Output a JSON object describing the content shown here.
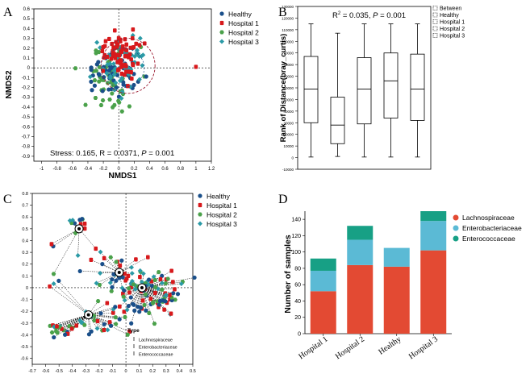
{
  "colors": {
    "healthy": "#1a4f8a",
    "hospital1": "#d7191c",
    "hospital2": "#4aa14a",
    "hospital3": "#2b9aa6",
    "lachno": "#e34a33",
    "entero": "#5bbad5",
    "enteroc": "#17a085"
  },
  "chart_data": [
    {
      "panel": "A",
      "type": "scatter",
      "title": "",
      "xlabel": "NMDS1",
      "ylabel": "NMDS2",
      "xlim": [
        -1.1,
        1.2
      ],
      "ylim": [
        -0.95,
        0.6
      ],
      "xticks": [
        "-1",
        "-0.8",
        "-0.6",
        "-0.4",
        "-0.2",
        "0",
        "0.2",
        "0.4",
        "0.6",
        "0.8",
        "1",
        "1.2"
      ],
      "yticks": [
        "0.6",
        "0.5",
        "0.4",
        "0.3",
        "0.2",
        "0.1",
        "0",
        "-0.1",
        "-0.2",
        "-0.3",
        "-0.4",
        "-0.5",
        "-0.6",
        "-0.7",
        "-0.8",
        "-0.9"
      ],
      "legend": [
        "Healthy",
        "Hospital 1",
        "Hospital 2",
        "Hospital 3"
      ],
      "annotation_parts": [
        "Stress: 0.165, R = 0.0371, ",
        "P",
        " = 0.001"
      ],
      "outlier_point": {
        "x": 1.0,
        "y": 0.01
      },
      "series": [
        {
          "name": "Healthy",
          "centroid": [
            -0.05,
            -0.05
          ],
          "spread": [
            0.3,
            0.2
          ],
          "n": 55
        },
        {
          "name": "Hospital 1",
          "centroid": [
            0.05,
            0.13
          ],
          "spread": [
            0.25,
            0.2
          ],
          "n": 60
        },
        {
          "name": "Hospital 2",
          "centroid": [
            0.0,
            -0.1
          ],
          "spread": [
            0.35,
            0.28
          ],
          "n": 60
        },
        {
          "name": "Hospital 3",
          "centroid": [
            0.08,
            0.05
          ],
          "spread": [
            0.3,
            0.22
          ],
          "n": 55
        }
      ]
    },
    {
      "panel": "B",
      "type": "box",
      "title": "",
      "xlabel": "",
      "ylabel": "Rank of Distance(bray_curtis)",
      "ylim": [
        -10000,
        130000
      ],
      "yticks": [
        "-10000",
        "0",
        "10000",
        "20000",
        "30000",
        "40000",
        "50000",
        "60000",
        "70000",
        "80000",
        "90000",
        "100000",
        "110000",
        "120000",
        "130000"
      ],
      "annotation_parts": [
        "R",
        "2",
        " = 0.035, ",
        "P",
        " = 0.001"
      ],
      "legend": [
        "Between",
        "Healthy",
        "Hospital 1",
        "Hospital 2",
        "Hospital 3"
      ],
      "boxes": [
        {
          "name": "Between",
          "min": 500,
          "q1": 30000,
          "median": 59000,
          "q3": 87000,
          "max": 115000
        },
        {
          "name": "Healthy",
          "min": 1000,
          "q1": 12000,
          "median": 28000,
          "q3": 52000,
          "max": 107000
        },
        {
          "name": "Hospital 1",
          "min": 500,
          "q1": 29000,
          "median": 59000,
          "q3": 86000,
          "max": 115000
        },
        {
          "name": "Hospital 2",
          "min": 500,
          "q1": 34000,
          "median": 66000,
          "q3": 90000,
          "max": 115000
        },
        {
          "name": "Hospital 3",
          "min": 500,
          "q1": 32000,
          "median": 59000,
          "q3": 89000,
          "max": 115000
        }
      ]
    },
    {
      "panel": "C",
      "type": "scatter",
      "title": "",
      "xlabel": "",
      "ylabel": "",
      "xlim": [
        -0.7,
        0.5
      ],
      "ylim": [
        -0.65,
        0.8
      ],
      "xticks": [
        "-0.7",
        "-0.6",
        "-0.5",
        "-0.4",
        "-0.3",
        "-0.2",
        "-0.1",
        "0",
        "0.1",
        "0.2",
        "0.3",
        "0.4",
        "0.5"
      ],
      "yticks": [
        "0.8",
        "0.7",
        "0.6",
        "0.5",
        "0.4",
        "0.3",
        "0.2",
        "0.1",
        "0",
        "-0.1",
        "-0.2",
        "-0.3",
        "-0.4",
        "-0.5",
        "-0.6"
      ],
      "legend": [
        "Healthy",
        "Hospital 1",
        "Hospital 2",
        "Hospital 3"
      ],
      "type_legend_title": "Type",
      "type_legend": [
        "Lachnospiraceae",
        "Enterobacteriaceae",
        "Enterococcaceae"
      ],
      "centers": [
        {
          "name": "c1",
          "x": -0.35,
          "y": 0.5
        },
        {
          "name": "c2",
          "x": -0.28,
          "y": -0.23
        },
        {
          "name": "c3",
          "x": 0.12,
          "y": 0.0
        },
        {
          "name": "c4",
          "x": -0.05,
          "y": 0.13
        }
      ]
    },
    {
      "panel": "D",
      "type": "bar",
      "title": "",
      "xlabel": "",
      "ylabel": "Number of samples",
      "ylim": [
        0,
        150
      ],
      "yticks": [
        "0",
        "20",
        "40",
        "60",
        "80",
        "100",
        "120",
        "140"
      ],
      "categories": [
        "Hospital 1",
        "Hospital 2",
        "Healthy",
        "Hospital 3"
      ],
      "series": [
        {
          "name": "Lachnospiraceae",
          "values": [
            52,
            84,
            82,
            102
          ]
        },
        {
          "name": "Enterobacteriaceae",
          "values": [
            25,
            31,
            23,
            36
          ]
        },
        {
          "name": "Enterococcaceae",
          "values": [
            15,
            17,
            0,
            12
          ]
        }
      ]
    }
  ],
  "panel_labels": [
    "A",
    "B",
    "C",
    "D"
  ]
}
